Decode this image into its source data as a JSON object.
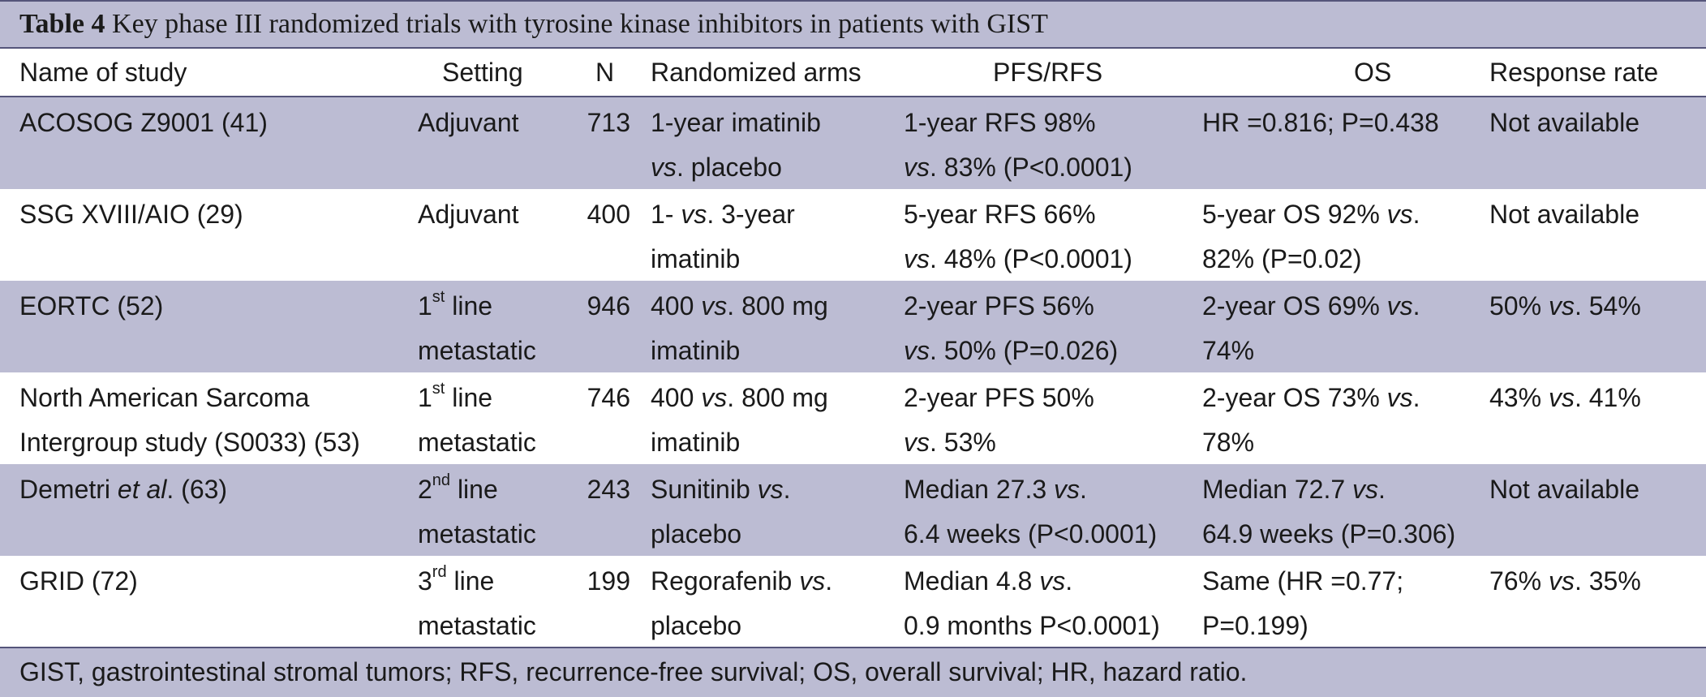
{
  "caption": {
    "label": "Table 4",
    "text": " Key phase III randomized trials with tyrosine kinase inhibitors in patients with GIST"
  },
  "columns": [
    "Name of study",
    "Setting",
    "N",
    "Randomized arms",
    "PFS/RFS",
    "OS",
    "Response rate"
  ],
  "rows": [
    {
      "study": [
        "ACOSOG Z9001 (41)"
      ],
      "setting": {
        "line1": "Adjuvant",
        "line2": ""
      },
      "n": "713",
      "arms": [
        [
          "1-year imatinib"
        ],
        [
          {
            "i": "vs"
          },
          ". placebo"
        ]
      ],
      "pfs": [
        [
          "1-year RFS 98%"
        ],
        [
          {
            "i": "vs"
          },
          ". 83% (P<0.0001)"
        ]
      ],
      "os": [
        [
          "HR =0.816; P=0.438"
        ]
      ],
      "response": [
        [
          "Not available"
        ]
      ]
    },
    {
      "study": [
        "SSG XVIII/AIO (29)"
      ],
      "setting": {
        "line1": "Adjuvant",
        "line2": ""
      },
      "n": "400",
      "arms": [
        [
          "1- ",
          {
            "i": "vs"
          },
          ". 3-year"
        ],
        [
          "imatinib"
        ]
      ],
      "pfs": [
        [
          "5-year RFS 66%"
        ],
        [
          {
            "i": "vs"
          },
          ". 48% (P<0.0001)"
        ]
      ],
      "os": [
        [
          "5-year OS 92% ",
          {
            "i": "vs"
          },
          "."
        ],
        [
          "82% (P=0.02)"
        ]
      ],
      "response": [
        [
          "Not available"
        ]
      ]
    },
    {
      "study": [
        "EORTC (52)"
      ],
      "setting": {
        "num": "1",
        "sup": "st",
        "rest": " line",
        "line2": "metastatic"
      },
      "n": "946",
      "arms": [
        [
          "400 ",
          {
            "i": "vs"
          },
          ". 800 mg"
        ],
        [
          "imatinib"
        ]
      ],
      "pfs": [
        [
          "2-year PFS 56%"
        ],
        [
          {
            "i": "vs"
          },
          ". 50% (P=0.026)"
        ]
      ],
      "os": [
        [
          "2-year OS 69% ",
          {
            "i": "vs"
          },
          "."
        ],
        [
          "74%"
        ]
      ],
      "response": [
        [
          "50% ",
          {
            "i": "vs"
          },
          ". 54%"
        ]
      ]
    },
    {
      "study": [
        "North American Sarcoma",
        "Intergroup study (S0033) (53)"
      ],
      "setting": {
        "num": "1",
        "sup": "st",
        "rest": " line",
        "line2": "metastatic"
      },
      "n": "746",
      "arms": [
        [
          "400 ",
          {
            "i": "vs"
          },
          ". 800 mg"
        ],
        [
          "imatinib"
        ]
      ],
      "pfs": [
        [
          "2-year PFS 50%"
        ],
        [
          {
            "i": "vs"
          },
          ". 53%"
        ]
      ],
      "os": [
        [
          "2-year OS 73% ",
          {
            "i": "vs"
          },
          "."
        ],
        [
          "78%"
        ]
      ],
      "response": [
        [
          "43% ",
          {
            "i": "vs"
          },
          ". 41%"
        ]
      ]
    },
    {
      "study_parts": [
        "Demetri ",
        {
          "i": "et al"
        },
        ". (63)"
      ],
      "setting": {
        "num": "2",
        "sup": "nd",
        "rest": " line",
        "line2": "metastatic"
      },
      "n": "243",
      "arms": [
        [
          "Sunitinib ",
          {
            "i": "vs"
          },
          "."
        ],
        [
          "placebo"
        ]
      ],
      "pfs": [
        [
          "Median 27.3 ",
          {
            "i": "vs"
          },
          "."
        ],
        [
          "6.4 weeks (P<0.0001)"
        ]
      ],
      "os": [
        [
          "Median 72.7 ",
          {
            "i": "vs"
          },
          "."
        ],
        [
          "64.9 weeks (P=0.306)"
        ]
      ],
      "response": [
        [
          "Not available"
        ]
      ]
    },
    {
      "study": [
        "GRID (72)"
      ],
      "setting": {
        "num": "3",
        "sup": "rd",
        "rest": " line",
        "line2": "metastatic"
      },
      "n": "199",
      "arms": [
        [
          "Regorafenib ",
          {
            "i": "vs"
          },
          "."
        ],
        [
          "placebo"
        ]
      ],
      "pfs": [
        [
          "Median 4.8 ",
          {
            "i": "vs"
          },
          "."
        ],
        [
          "0.9 months P<0.0001)"
        ]
      ],
      "os": [
        [
          "Same (HR =0.77;"
        ],
        [
          "P=0.199)"
        ]
      ],
      "response": [
        [
          "76% ",
          {
            "i": "vs"
          },
          ". 35%"
        ]
      ]
    }
  ],
  "footer": "GIST, gastrointestinal stromal tumors; RFS, recurrence-free survival; OS, overall survival; HR, hazard ratio."
}
